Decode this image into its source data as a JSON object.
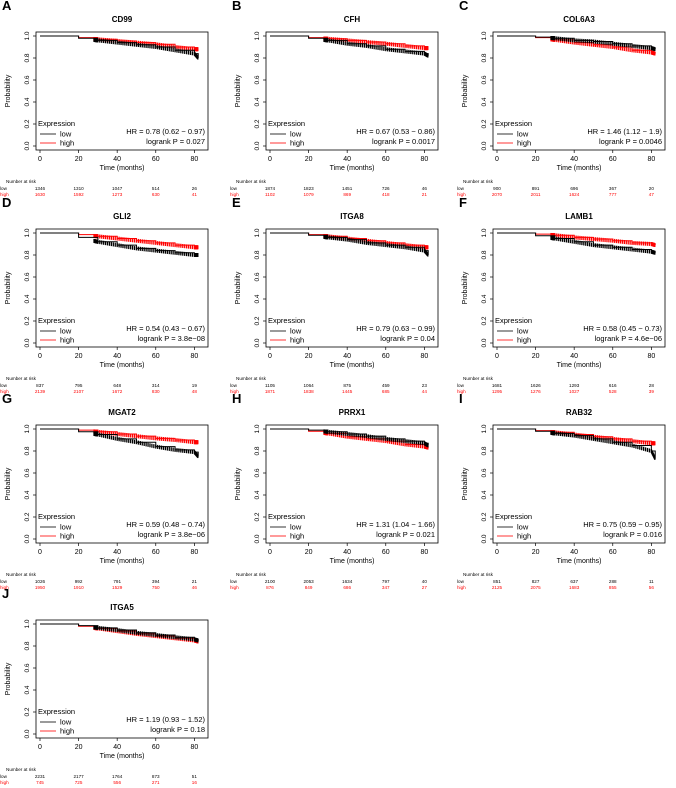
{
  "colors": {
    "low": "#000000",
    "high": "#ff0000",
    "grid": "#000000"
  },
  "common": {
    "xlabel": "Time (months)",
    "ylabel": "Probability",
    "legend_title": "Expression",
    "legend_low": "low",
    "legend_high": "high",
    "risk_title": "Number at risk",
    "risk_low_label": "low",
    "risk_high_label": "high",
    "xticks": [
      "0",
      "20",
      "40",
      "60",
      "80"
    ],
    "yticks": [
      "0.0",
      "0.2",
      "0.4",
      "0.6",
      "0.8",
      "1.0"
    ]
  },
  "chart_data": [
    {
      "type": "line",
      "panel": "A",
      "title": "CD99",
      "xlim": [
        0,
        85
      ],
      "ylim": [
        0,
        1
      ],
      "hr": "HR = 0.78 (0.62 − 0.97)",
      "logrank": "logrank P = 0.027",
      "risk_low": [
        "1346",
        "1310",
        "1047",
        "514",
        "26"
      ],
      "risk_high": [
        "1630",
        "1592",
        "1273",
        "630",
        "41"
      ],
      "series": [
        {
          "name": "low",
          "x": [
            0,
            20,
            30,
            40,
            50,
            60,
            70,
            80,
            82
          ],
          "y": [
            1.0,
            0.98,
            0.96,
            0.94,
            0.92,
            0.9,
            0.87,
            0.84,
            0.8
          ]
        },
        {
          "name": "high",
          "x": [
            0,
            20,
            30,
            40,
            50,
            60,
            70,
            80,
            82
          ],
          "y": [
            1.0,
            0.985,
            0.97,
            0.955,
            0.94,
            0.925,
            0.9,
            0.88,
            0.88
          ]
        }
      ]
    },
    {
      "type": "line",
      "panel": "B",
      "title": "CFH",
      "xlim": [
        0,
        85
      ],
      "ylim": [
        0,
        1
      ],
      "hr": "HR = 0.67 (0.53 − 0.86)",
      "logrank": "logrank P = 0.0017",
      "risk_low": [
        "1874",
        "1823",
        "1451",
        "726",
        "46"
      ],
      "risk_high": [
        "1102",
        "1079",
        "869",
        "418",
        "21"
      ],
      "series": [
        {
          "name": "low",
          "x": [
            0,
            20,
            30,
            40,
            50,
            60,
            70,
            80,
            82
          ],
          "y": [
            1.0,
            0.98,
            0.96,
            0.93,
            0.91,
            0.88,
            0.86,
            0.84,
            0.82
          ]
        },
        {
          "name": "high",
          "x": [
            0,
            20,
            30,
            40,
            50,
            60,
            70,
            80,
            82
          ],
          "y": [
            1.0,
            0.985,
            0.975,
            0.96,
            0.945,
            0.93,
            0.91,
            0.89,
            0.89
          ]
        }
      ]
    },
    {
      "type": "line",
      "panel": "C",
      "title": "COL6A3",
      "xlim": [
        0,
        85
      ],
      "ylim": [
        0,
        1
      ],
      "hr": "HR = 1.46 (1.12 − 1.9)",
      "logrank": "logrank P = 0.0046",
      "risk_low": [
        "900",
        "891",
        "696",
        "367",
        "20"
      ],
      "risk_high": [
        "2070",
        "2011",
        "1624",
        "777",
        "47"
      ],
      "series": [
        {
          "name": "low",
          "x": [
            0,
            20,
            30,
            40,
            50,
            60,
            70,
            80,
            82
          ],
          "y": [
            1.0,
            0.99,
            0.98,
            0.96,
            0.95,
            0.93,
            0.91,
            0.89,
            0.88
          ]
        },
        {
          "name": "high",
          "x": [
            0,
            20,
            30,
            40,
            50,
            60,
            70,
            80,
            82
          ],
          "y": [
            1.0,
            0.985,
            0.965,
            0.94,
            0.92,
            0.9,
            0.87,
            0.85,
            0.84
          ]
        }
      ]
    },
    {
      "type": "line",
      "panel": "D",
      "title": "GLI2",
      "xlim": [
        0,
        85
      ],
      "ylim": [
        0,
        1
      ],
      "hr": "HR = 0.54 (0.43 − 0.67)",
      "logrank": "logrank P = 3.8e−08",
      "risk_low": [
        "837",
        "795",
        "648",
        "314",
        "19"
      ],
      "risk_high": [
        "2139",
        "2107",
        "1672",
        "830",
        "48"
      ],
      "series": [
        {
          "name": "low",
          "x": [
            0,
            20,
            30,
            40,
            50,
            60,
            70,
            80,
            82
          ],
          "y": [
            1.0,
            0.96,
            0.92,
            0.89,
            0.86,
            0.84,
            0.82,
            0.8,
            0.8
          ]
        },
        {
          "name": "high",
          "x": [
            0,
            20,
            30,
            40,
            50,
            60,
            70,
            80,
            82
          ],
          "y": [
            1.0,
            0.985,
            0.97,
            0.95,
            0.93,
            0.91,
            0.89,
            0.87,
            0.87
          ]
        }
      ]
    },
    {
      "type": "line",
      "panel": "E",
      "title": "ITGA8",
      "xlim": [
        0,
        85
      ],
      "ylim": [
        0,
        1
      ],
      "hr": "HR = 0.79 (0.63 − 0.99)",
      "logrank": "logrank P = 0.04",
      "risk_low": [
        "1105",
        "1064",
        "875",
        "459",
        "23"
      ],
      "risk_high": [
        "1871",
        "1838",
        "1445",
        "685",
        "44"
      ],
      "series": [
        {
          "name": "low",
          "x": [
            0,
            20,
            30,
            40,
            50,
            60,
            70,
            80,
            82
          ],
          "y": [
            1.0,
            0.98,
            0.96,
            0.94,
            0.91,
            0.89,
            0.87,
            0.84,
            0.8
          ]
        },
        {
          "name": "high",
          "x": [
            0,
            20,
            30,
            40,
            50,
            60,
            70,
            80,
            82
          ],
          "y": [
            1.0,
            0.985,
            0.97,
            0.95,
            0.93,
            0.91,
            0.89,
            0.87,
            0.87
          ]
        }
      ]
    },
    {
      "type": "line",
      "panel": "F",
      "title": "LAMB1",
      "xlim": [
        0,
        85
      ],
      "ylim": [
        0,
        1
      ],
      "hr": "HR = 0.58 (0.45 − 0.73)",
      "logrank": "logrank P = 4.6e−06",
      "risk_low": [
        "1681",
        "1626",
        "1293",
        "616",
        "28"
      ],
      "risk_high": [
        "1295",
        "1276",
        "1027",
        "528",
        "39"
      ],
      "series": [
        {
          "name": "low",
          "x": [
            0,
            20,
            30,
            40,
            50,
            60,
            70,
            80,
            82
          ],
          "y": [
            1.0,
            0.975,
            0.95,
            0.92,
            0.89,
            0.87,
            0.85,
            0.83,
            0.82
          ]
        },
        {
          "name": "high",
          "x": [
            0,
            20,
            30,
            40,
            50,
            60,
            70,
            80,
            82
          ],
          "y": [
            1.0,
            0.99,
            0.98,
            0.96,
            0.945,
            0.93,
            0.91,
            0.9,
            0.89
          ]
        }
      ]
    },
    {
      "type": "line",
      "panel": "G",
      "title": "MGAT2",
      "xlim": [
        0,
        85
      ],
      "ylim": [
        0,
        1
      ],
      "hr": "HR = 0.59 (0.48 − 0.74)",
      "logrank": "logrank P = 3.8e−06",
      "risk_low": [
        "1026",
        "992",
        "791",
        "394",
        "21"
      ],
      "risk_high": [
        "1950",
        "1910",
        "1529",
        "750",
        "46"
      ],
      "series": [
        {
          "name": "low",
          "x": [
            0,
            20,
            30,
            40,
            50,
            60,
            70,
            80,
            82
          ],
          "y": [
            1.0,
            0.975,
            0.95,
            0.91,
            0.88,
            0.84,
            0.81,
            0.79,
            0.75
          ]
        },
        {
          "name": "high",
          "x": [
            0,
            20,
            30,
            40,
            50,
            60,
            70,
            80,
            82
          ],
          "y": [
            1.0,
            0.99,
            0.975,
            0.955,
            0.935,
            0.915,
            0.9,
            0.88,
            0.88
          ]
        }
      ]
    },
    {
      "type": "line",
      "panel": "H",
      "title": "PRRX1",
      "xlim": [
        0,
        85
      ],
      "ylim": [
        0,
        1
      ],
      "hr": "HR = 1.31 (1.04 − 1.66)",
      "logrank": "logrank P = 0.021",
      "risk_low": [
        "2100",
        "2053",
        "1634",
        "797",
        "40"
      ],
      "risk_high": [
        "876",
        "849",
        "686",
        "347",
        "27"
      ],
      "series": [
        {
          "name": "low",
          "x": [
            0,
            20,
            30,
            40,
            50,
            60,
            70,
            80,
            82
          ],
          "y": [
            1.0,
            0.99,
            0.975,
            0.955,
            0.935,
            0.91,
            0.89,
            0.87,
            0.85
          ]
        },
        {
          "name": "high",
          "x": [
            0,
            20,
            30,
            40,
            50,
            60,
            70,
            80,
            82
          ],
          "y": [
            1.0,
            0.98,
            0.96,
            0.93,
            0.91,
            0.89,
            0.86,
            0.84,
            0.83
          ]
        }
      ]
    },
    {
      "type": "line",
      "panel": "I",
      "title": "RAB32",
      "xlim": [
        0,
        85
      ],
      "ylim": [
        0,
        1
      ],
      "hr": "HR = 0.75 (0.59 − 0.95)",
      "logrank": "logrank P = 0.016",
      "risk_low": [
        "851",
        "827",
        "637",
        "288",
        "11"
      ],
      "risk_high": [
        "2125",
        "2075",
        "1683",
        "855",
        "56"
      ],
      "series": [
        {
          "name": "low",
          "x": [
            0,
            20,
            30,
            40,
            50,
            60,
            70,
            80,
            82
          ],
          "y": [
            1.0,
            0.98,
            0.96,
            0.94,
            0.91,
            0.88,
            0.85,
            0.8,
            0.73
          ]
        },
        {
          "name": "high",
          "x": [
            0,
            20,
            30,
            40,
            50,
            60,
            70,
            80,
            82
          ],
          "y": [
            1.0,
            0.985,
            0.97,
            0.95,
            0.93,
            0.91,
            0.89,
            0.87,
            0.87
          ]
        }
      ]
    },
    {
      "type": "line",
      "panel": "J",
      "title": "ITGA5",
      "xlim": [
        0,
        85
      ],
      "ylim": [
        0,
        1
      ],
      "hr": "HR = 1.19 (0.93 − 1.52)",
      "logrank": "logrank P = 0.18",
      "risk_low": [
        "2231",
        "2177",
        "1764",
        "873",
        "51"
      ],
      "risk_high": [
        "745",
        "725",
        "556",
        "271",
        "16"
      ],
      "series": [
        {
          "name": "low",
          "x": [
            0,
            20,
            30,
            40,
            50,
            60,
            70,
            80,
            82
          ],
          "y": [
            1.0,
            0.985,
            0.965,
            0.945,
            0.92,
            0.9,
            0.88,
            0.86,
            0.85
          ]
        },
        {
          "name": "high",
          "x": [
            0,
            20,
            30,
            40,
            50,
            60,
            70,
            80,
            82
          ],
          "y": [
            1.0,
            0.98,
            0.96,
            0.935,
            0.91,
            0.89,
            0.87,
            0.85,
            0.84
          ]
        }
      ]
    }
  ]
}
